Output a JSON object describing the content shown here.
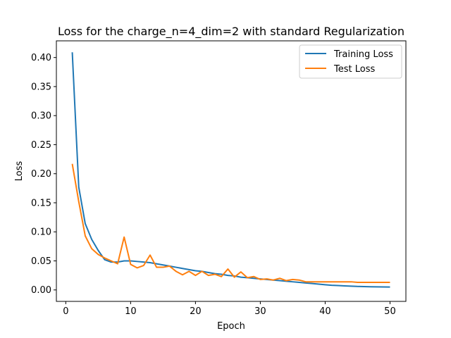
{
  "chart_data": {
    "type": "line",
    "title": "Loss for the charge_n=4_dim=2 with standard Regularization",
    "xlabel": "Epoch",
    "ylabel": "Loss",
    "xlim": [
      -1.45,
      52.45
    ],
    "ylim": [
      -0.0197,
      0.4287
    ],
    "xticks": [
      0,
      10,
      20,
      30,
      40,
      50
    ],
    "xtick_labels": [
      "0",
      "10",
      "20",
      "30",
      "40",
      "50"
    ],
    "yticks": [
      0.0,
      0.05,
      0.1,
      0.15,
      0.2,
      0.25,
      0.3,
      0.35,
      0.4
    ],
    "ytick_labels": [
      "0.00",
      "0.05",
      "0.10",
      "0.15",
      "0.20",
      "0.25",
      "0.30",
      "0.35",
      "0.40"
    ],
    "grid": false,
    "legend_position": "top-right",
    "x": [
      1,
      2,
      3,
      4,
      5,
      6,
      7,
      8,
      9,
      10,
      11,
      12,
      13,
      14,
      15,
      16,
      17,
      18,
      19,
      20,
      21,
      22,
      23,
      24,
      25,
      26,
      27,
      28,
      29,
      30,
      31,
      32,
      33,
      34,
      35,
      36,
      37,
      38,
      39,
      40,
      41,
      42,
      43,
      44,
      45,
      46,
      47,
      48,
      49,
      50
    ],
    "series": [
      {
        "name": "Training Loss",
        "color": "#1f77b4",
        "values": [
          0.409,
          0.177,
          0.114,
          0.087,
          0.068,
          0.052,
          0.048,
          0.048,
          0.05,
          0.05,
          0.049,
          0.048,
          0.047,
          0.045,
          0.043,
          0.041,
          0.039,
          0.037,
          0.035,
          0.033,
          0.032,
          0.03,
          0.028,
          0.027,
          0.025,
          0.024,
          0.022,
          0.021,
          0.02,
          0.019,
          0.018,
          0.017,
          0.016,
          0.015,
          0.014,
          0.013,
          0.012,
          0.011,
          0.01,
          0.009,
          0.008,
          0.0075,
          0.007,
          0.0065,
          0.006,
          0.0058,
          0.0055,
          0.0053,
          0.0052,
          0.005
        ]
      },
      {
        "name": "Test Loss",
        "color": "#ff7f0e",
        "values": [
          0.217,
          0.152,
          0.093,
          0.071,
          0.061,
          0.055,
          0.05,
          0.045,
          0.091,
          0.044,
          0.038,
          0.042,
          0.06,
          0.039,
          0.039,
          0.041,
          0.032,
          0.026,
          0.032,
          0.025,
          0.032,
          0.025,
          0.027,
          0.023,
          0.036,
          0.022,
          0.031,
          0.021,
          0.023,
          0.018,
          0.019,
          0.017,
          0.02,
          0.016,
          0.018,
          0.017,
          0.014,
          0.014,
          0.014,
          0.014,
          0.014,
          0.014,
          0.014,
          0.014,
          0.013,
          0.013,
          0.013,
          0.013,
          0.013,
          0.013
        ]
      }
    ]
  }
}
